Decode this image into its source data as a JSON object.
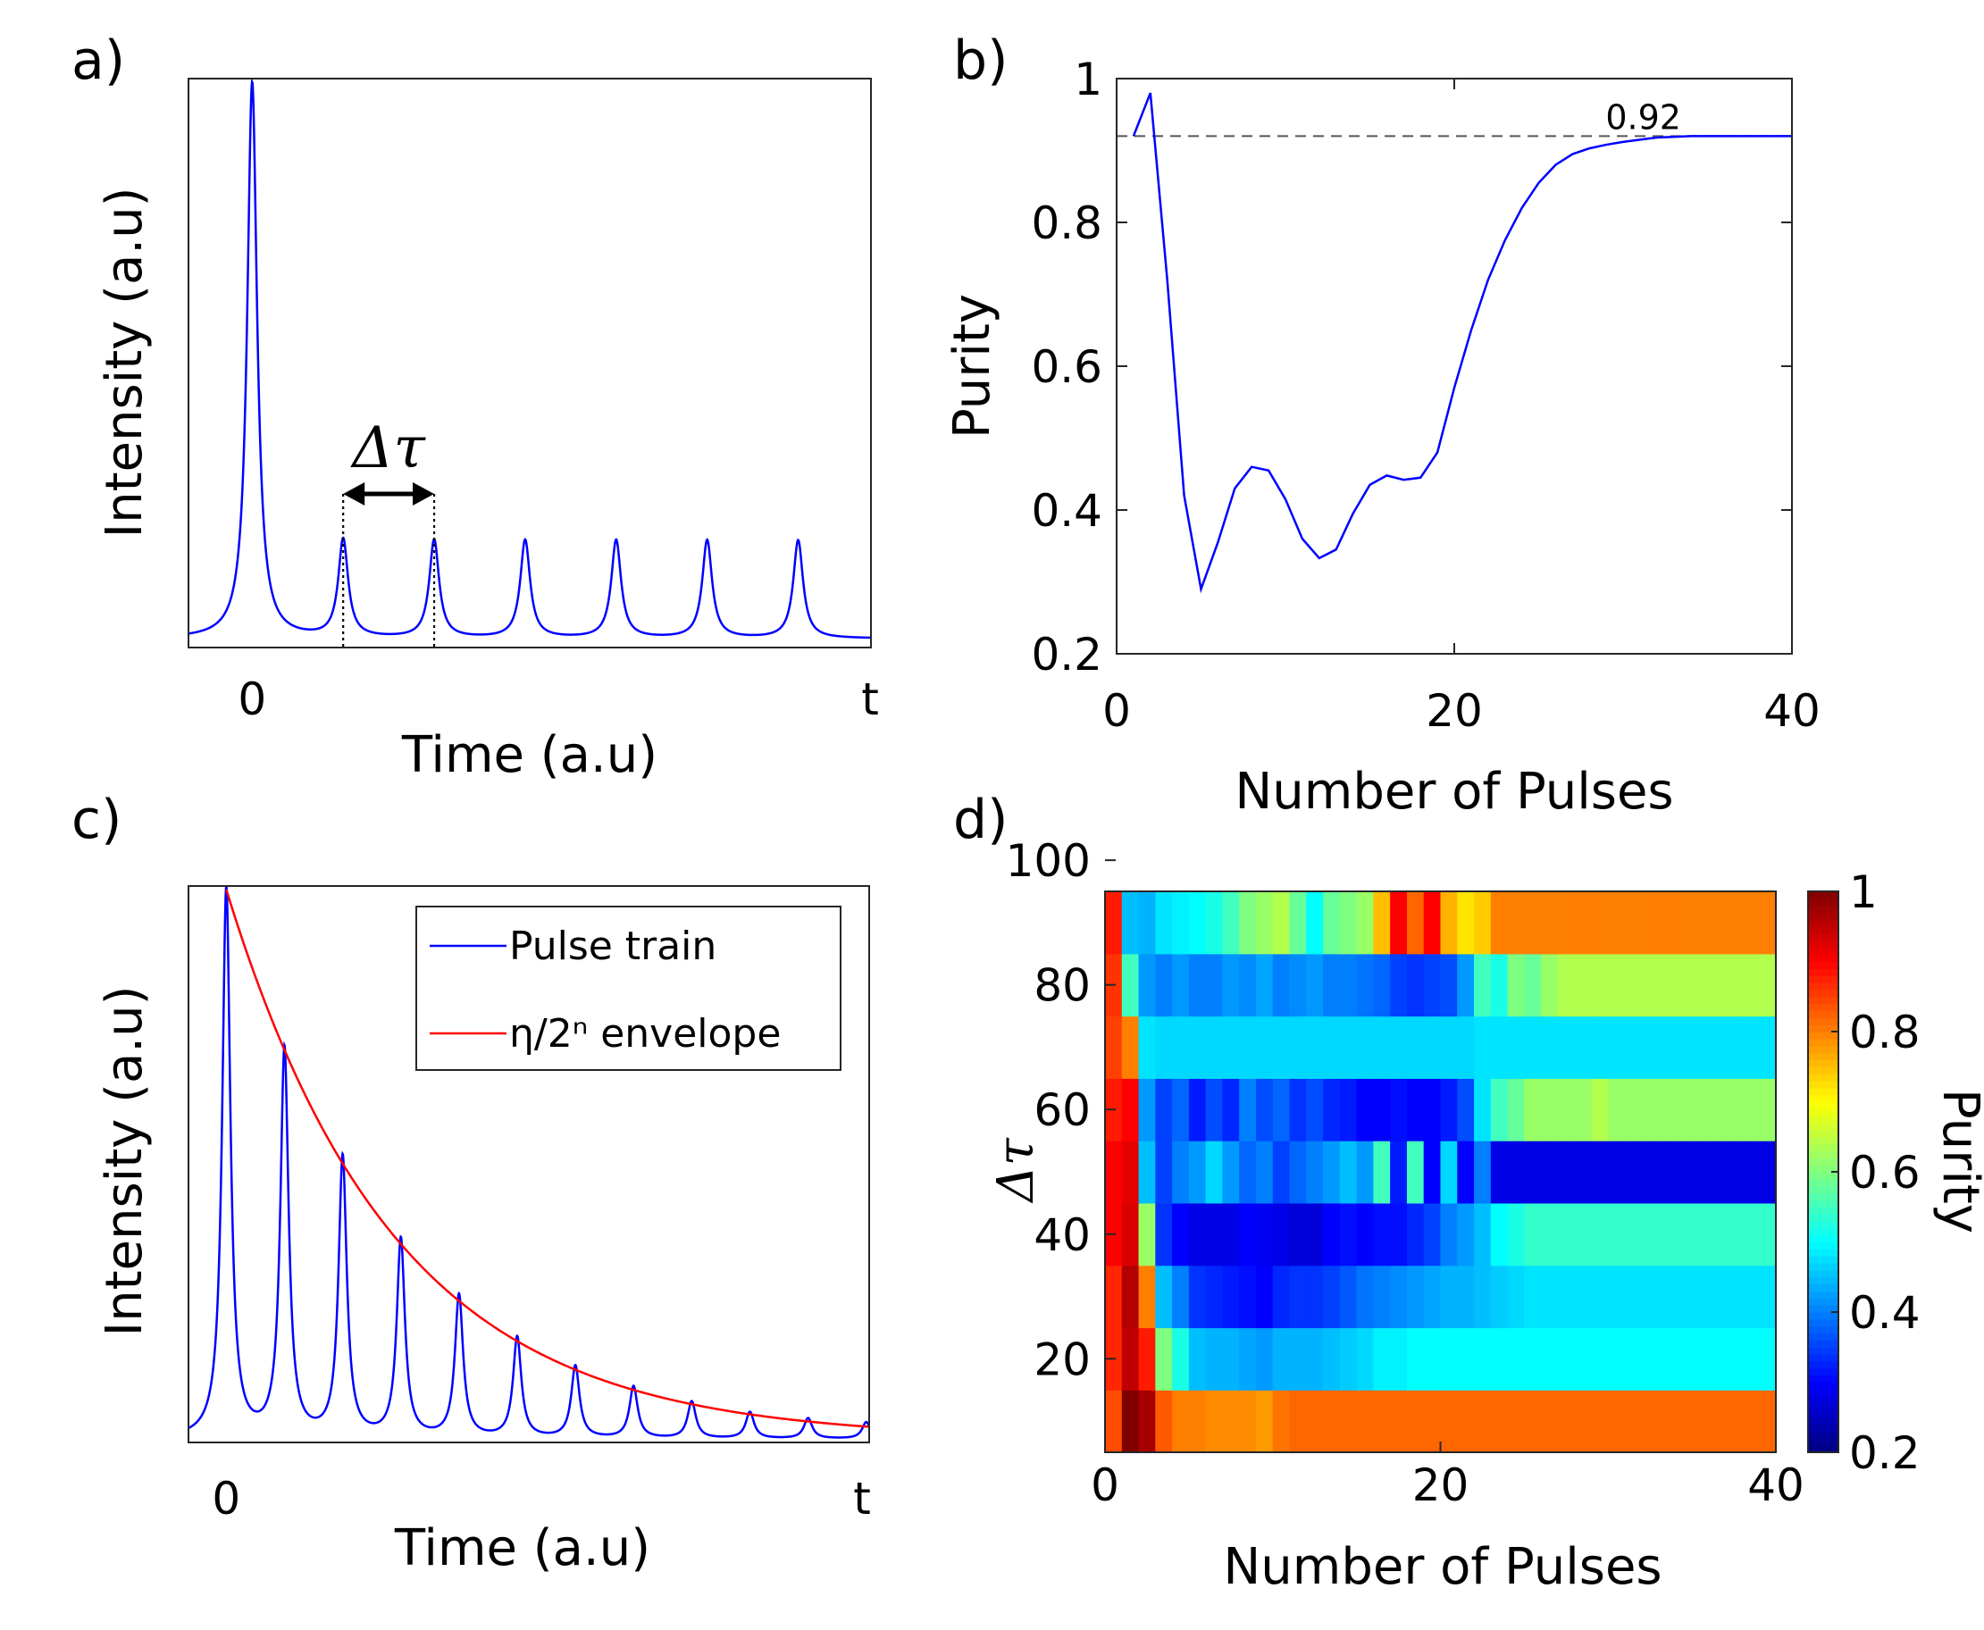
{
  "panel_labels": [
    "a)",
    "b)",
    "c)",
    "d)"
  ],
  "colors": {
    "pulse": "#0000ff",
    "envelope": "#ff0000",
    "axes": "#262626",
    "reference": "#555555"
  },
  "chart_data": [
    {
      "id": "a",
      "type": "line",
      "title": "",
      "xlabel": "Time (a.u)",
      "ylabel": "Intensity (a.u)",
      "xtick_labels": [
        "0",
        "t"
      ],
      "grid": false,
      "series": [
        {
          "name": "Pulse train",
          "x_range": [
            -0.7,
            6.8
          ],
          "peak_positions": [
            0,
            1,
            2,
            3,
            4,
            5,
            6
          ],
          "peak_heights": [
            1.0,
            0.176,
            0.176,
            0.176,
            0.176,
            0.176,
            0.176
          ],
          "pulse_width": 0.065
        }
      ],
      "annotation": {
        "text": "Δτ",
        "between_peaks": [
          1,
          2
        ]
      }
    },
    {
      "id": "b",
      "type": "line",
      "title": "",
      "xlabel": "Number of Pulses",
      "ylabel": "Purity",
      "xlim": [
        0,
        40
      ],
      "ylim": [
        0.2,
        1
      ],
      "xticks": [
        0,
        20,
        40
      ],
      "xtick_labels": [
        "0",
        "20",
        "40"
      ],
      "yticks": [
        0.2,
        0.4,
        0.6,
        0.8,
        1
      ],
      "ytick_labels": [
        "0.2",
        "0.4",
        "0.6",
        "0.8",
        "1"
      ],
      "grid": false,
      "reference_line": {
        "value": 0.92,
        "label": "0.92",
        "style": "dashed"
      },
      "series": [
        {
          "name": "Purity",
          "x": [
            1,
            2,
            3,
            4,
            5,
            6,
            7,
            8,
            9,
            10,
            11,
            12,
            13,
            14,
            15,
            16,
            17,
            18,
            19,
            20,
            21,
            22,
            23,
            24,
            25,
            26,
            27,
            28,
            29,
            30,
            31,
            32,
            33,
            34,
            35,
            36,
            37,
            38,
            39,
            40
          ],
          "y": [
            0.92,
            0.98,
            0.72,
            0.42,
            0.29,
            0.355,
            0.43,
            0.46,
            0.455,
            0.415,
            0.36,
            0.333,
            0.345,
            0.395,
            0.435,
            0.448,
            0.442,
            0.445,
            0.48,
            0.57,
            0.65,
            0.72,
            0.775,
            0.82,
            0.855,
            0.88,
            0.895,
            0.903,
            0.908,
            0.912,
            0.915,
            0.918,
            0.919,
            0.92,
            0.92,
            0.92,
            0.92,
            0.92,
            0.92,
            0.92
          ]
        }
      ]
    },
    {
      "id": "c",
      "type": "line",
      "title": "",
      "xlabel": "Time (a.u)",
      "ylabel": "Intensity (a.u)",
      "xtick_labels": [
        "0",
        "t"
      ],
      "grid": false,
      "legend": {
        "placement": "top-right",
        "entries": [
          "Pulse train",
          "η/2ⁿ envelope"
        ]
      },
      "series": [
        {
          "name": "Pulse train",
          "x_range": [
            -0.65,
            11.05
          ],
          "peak_positions": [
            0,
            1,
            2,
            3,
            4,
            5,
            6,
            7,
            8,
            9,
            10,
            11
          ],
          "peak_heights": [
            1.0,
            0.705,
            0.509,
            0.36,
            0.259,
            0.183,
            0.131,
            0.094,
            0.067,
            0.048,
            0.037,
            0.03
          ],
          "pulse_width": 0.085
        },
        {
          "name": "η/2ⁿ envelope",
          "function": "exponential decay",
          "x_range": [
            0,
            11.05
          ],
          "start_value": 1.0,
          "end_value": 0.022
        }
      ]
    },
    {
      "id": "d",
      "type": "heatmap",
      "title": "",
      "xlabel": "Number of Pulses",
      "ylabel": "Δτ",
      "xlim": [
        0,
        40
      ],
      "xticks": [
        0,
        20,
        40
      ],
      "xtick_labels": [
        "0",
        "20",
        "40"
      ],
      "yticks": [
        20,
        40,
        60,
        80,
        100
      ],
      "ytick_labels": [
        "20",
        "40",
        "60",
        "80",
        "100"
      ],
      "colorbar": {
        "label": "Purity",
        "range": [
          0.2,
          1
        ],
        "ticks": [
          0.2,
          0.4,
          0.6,
          0.8,
          1
        ],
        "tick_labels": [
          "0.2",
          "0.4",
          "0.6",
          "0.8",
          "1"
        ],
        "colormap": "jet"
      },
      "rows": [
        {
          "delta_tau": 10,
          "values": [
            0.84,
            1.0,
            0.97,
            0.83,
            0.8,
            0.8,
            0.79,
            0.79,
            0.79,
            0.78,
            0.81,
            0.82,
            0.82,
            0.82,
            0.82,
            0.82,
            0.82,
            0.82,
            0.82,
            0.82,
            0.82,
            0.82,
            0.82,
            0.82,
            0.82,
            0.82,
            0.82,
            0.82,
            0.82,
            0.82,
            0.82,
            0.82,
            0.82,
            0.82,
            0.82,
            0.82,
            0.82,
            0.82,
            0.82,
            0.82
          ]
        },
        {
          "delta_tau": 20,
          "values": [
            0.87,
            0.95,
            0.88,
            0.6,
            0.52,
            0.45,
            0.44,
            0.44,
            0.43,
            0.42,
            0.44,
            0.44,
            0.44,
            0.45,
            0.46,
            0.47,
            0.49,
            0.49,
            0.5,
            0.5,
            0.5,
            0.5,
            0.5,
            0.5,
            0.5,
            0.5,
            0.5,
            0.5,
            0.5,
            0.5,
            0.5,
            0.5,
            0.5,
            0.5,
            0.5,
            0.5,
            0.5,
            0.5,
            0.5,
            0.5
          ]
        },
        {
          "delta_tau": 30,
          "values": [
            0.87,
            0.96,
            0.8,
            0.45,
            0.4,
            0.34,
            0.33,
            0.32,
            0.31,
            0.3,
            0.33,
            0.34,
            0.34,
            0.35,
            0.37,
            0.39,
            0.4,
            0.41,
            0.42,
            0.43,
            0.44,
            0.44,
            0.45,
            0.46,
            0.47,
            0.48,
            0.48,
            0.48,
            0.48,
            0.48,
            0.48,
            0.48,
            0.48,
            0.48,
            0.48,
            0.48,
            0.48,
            0.48,
            0.48,
            0.48
          ]
        },
        {
          "delta_tau": 40,
          "values": [
            0.9,
            0.93,
            0.62,
            0.34,
            0.3,
            0.28,
            0.28,
            0.28,
            0.3,
            0.29,
            0.28,
            0.27,
            0.27,
            0.3,
            0.31,
            0.3,
            0.31,
            0.31,
            0.33,
            0.35,
            0.4,
            0.42,
            0.45,
            0.5,
            0.52,
            0.54,
            0.54,
            0.54,
            0.54,
            0.54,
            0.54,
            0.54,
            0.54,
            0.54,
            0.54,
            0.54,
            0.54,
            0.54,
            0.54,
            0.54
          ]
        },
        {
          "delta_tau": 50,
          "values": [
            0.9,
            0.92,
            0.45,
            0.35,
            0.4,
            0.42,
            0.47,
            0.42,
            0.38,
            0.4,
            0.35,
            0.38,
            0.4,
            0.42,
            0.45,
            0.42,
            0.55,
            0.32,
            0.55,
            0.3,
            0.47,
            0.3,
            0.4,
            0.28,
            0.28,
            0.28,
            0.28,
            0.28,
            0.28,
            0.28,
            0.28,
            0.28,
            0.28,
            0.28,
            0.28,
            0.28,
            0.28,
            0.28,
            0.28,
            0.28
          ]
        },
        {
          "delta_tau": 60,
          "values": [
            0.88,
            0.9,
            0.42,
            0.35,
            0.38,
            0.32,
            0.36,
            0.33,
            0.4,
            0.36,
            0.38,
            0.34,
            0.36,
            0.33,
            0.32,
            0.3,
            0.3,
            0.31,
            0.3,
            0.3,
            0.32,
            0.36,
            0.48,
            0.55,
            0.58,
            0.62,
            0.62,
            0.62,
            0.62,
            0.64,
            0.62,
            0.62,
            0.62,
            0.62,
            0.62,
            0.62,
            0.62,
            0.62,
            0.62,
            0.62
          ]
        },
        {
          "delta_tau": 70,
          "values": [
            0.85,
            0.8,
            0.48,
            0.47,
            0.47,
            0.47,
            0.47,
            0.47,
            0.47,
            0.47,
            0.47,
            0.47,
            0.47,
            0.47,
            0.47,
            0.47,
            0.47,
            0.47,
            0.47,
            0.47,
            0.47,
            0.47,
            0.48,
            0.48,
            0.48,
            0.48,
            0.48,
            0.48,
            0.48,
            0.48,
            0.48,
            0.48,
            0.48,
            0.48,
            0.48,
            0.48,
            0.48,
            0.48,
            0.48,
            0.48
          ]
        },
        {
          "delta_tau": 80,
          "values": [
            0.86,
            0.55,
            0.42,
            0.4,
            0.42,
            0.4,
            0.4,
            0.42,
            0.41,
            0.43,
            0.4,
            0.41,
            0.42,
            0.4,
            0.4,
            0.39,
            0.38,
            0.35,
            0.34,
            0.35,
            0.36,
            0.42,
            0.55,
            0.52,
            0.6,
            0.58,
            0.62,
            0.64,
            0.64,
            0.64,
            0.64,
            0.64,
            0.64,
            0.64,
            0.64,
            0.64,
            0.64,
            0.64,
            0.64,
            0.64
          ]
        },
        {
          "delta_tau": 90,
          "values": [
            0.88,
            0.45,
            0.44,
            0.48,
            0.49,
            0.5,
            0.52,
            0.55,
            0.6,
            0.62,
            0.64,
            0.58,
            0.5,
            0.58,
            0.6,
            0.62,
            0.75,
            0.9,
            0.82,
            0.9,
            0.76,
            0.72,
            0.74,
            0.8,
            0.8,
            0.8,
            0.8,
            0.8,
            0.8,
            0.8,
            0.8,
            0.8,
            0.8,
            0.8,
            0.8,
            0.8,
            0.8,
            0.8,
            0.8,
            0.8
          ]
        }
      ]
    }
  ]
}
